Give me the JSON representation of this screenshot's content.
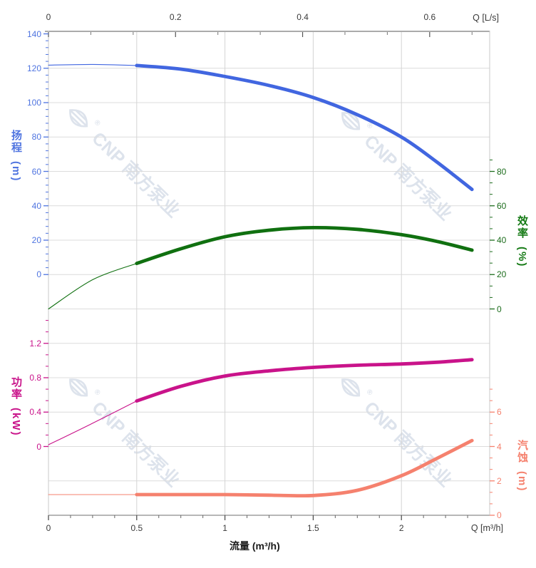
{
  "watermark": {
    "text": "CNP 南方泵业",
    "color": "#dde3ec"
  },
  "axes": {
    "top": {
      "title": "Q [L/s]",
      "ticks": [
        0,
        0.2,
        0.4,
        0.6
      ],
      "color": "#3a3a3a"
    },
    "bottom": {
      "title": "Q [m³/h]",
      "xlabel": "流量 (m³/h)",
      "ticks": [
        0,
        0.5,
        1,
        1.5,
        2
      ],
      "color": "#3a3a3a"
    },
    "head": {
      "label": "扬程",
      "unit": "(m)",
      "ticks": [
        140,
        120,
        100,
        80,
        60,
        40,
        20,
        0
      ],
      "color": "#4f74e0"
    },
    "efficiency": {
      "label": "效率",
      "unit": "(%)",
      "ticks": [
        80,
        60,
        40,
        20,
        0
      ],
      "color": "#1d6d1d"
    },
    "power": {
      "label": "功率",
      "unit": "(kW)",
      "ticks": [
        "1.2",
        "0.8",
        "0.4",
        "0"
      ],
      "color": "#c9138a"
    },
    "npsh": {
      "label": "汽蚀",
      "unit": "(m)",
      "ticks": [
        6,
        4,
        2,
        0
      ],
      "color": "#f5816e"
    }
  },
  "chart_data": {
    "type": "line",
    "title": "",
    "xlabel": "流量 (m³/h)",
    "x_axis_top": {
      "label": "Q [L/s]",
      "ticks": [
        0,
        0.2,
        0.4,
        0.6
      ],
      "conversion": "1 L/s = 3.6 m³/h"
    },
    "x_axis_bottom": {
      "label": "Q [m³/h]",
      "ticks": [
        0,
        0.5,
        1,
        1.5,
        2
      ],
      "range": [
        0,
        2.5
      ]
    },
    "grid": true,
    "legend": "none",
    "axis_ranges": {
      "head_m": [
        0,
        140
      ],
      "efficiency_pct": [
        0,
        80
      ],
      "power_kW": [
        0,
        1.2
      ],
      "npsh_m": [
        0,
        6
      ]
    },
    "thin_line_below_q": 0.5,
    "series": [
      {
        "name": "扬程",
        "unit": "m",
        "axis": "head",
        "color": "#4166e0",
        "points": [
          [
            0,
            121.8
          ],
          [
            0.25,
            122.2
          ],
          [
            0.5,
            121.6
          ],
          [
            0.75,
            119.5
          ],
          [
            1,
            115.2
          ],
          [
            1.25,
            110
          ],
          [
            1.5,
            103
          ],
          [
            1.75,
            93
          ],
          [
            2,
            80
          ],
          [
            2.2,
            65.5
          ],
          [
            2.4,
            49.5
          ]
        ]
      },
      {
        "name": "效率",
        "unit": "%",
        "axis": "efficiency",
        "color": "#107010",
        "points": [
          [
            0,
            0
          ],
          [
            0.25,
            17
          ],
          [
            0.5,
            26.5
          ],
          [
            0.75,
            35
          ],
          [
            1,
            42
          ],
          [
            1.25,
            45.8
          ],
          [
            1.5,
            47.3
          ],
          [
            1.75,
            46.3
          ],
          [
            2,
            43.2
          ],
          [
            2.2,
            39.3
          ],
          [
            2.4,
            34.2
          ]
        ]
      },
      {
        "name": "功率",
        "unit": "kW",
        "axis": "power",
        "color": "#c9138a",
        "points": [
          [
            0,
            0.02
          ],
          [
            0.25,
            0.27
          ],
          [
            0.5,
            0.53
          ],
          [
            0.75,
            0.7
          ],
          [
            1,
            0.82
          ],
          [
            1.25,
            0.88
          ],
          [
            1.5,
            0.92
          ],
          [
            1.75,
            0.945
          ],
          [
            2,
            0.96
          ],
          [
            2.2,
            0.98
          ],
          [
            2.4,
            1.01
          ]
        ]
      },
      {
        "name": "汽蚀",
        "unit": "m",
        "axis": "npsh",
        "color": "#f5816e",
        "points": [
          [
            0,
            1.2
          ],
          [
            0.25,
            1.2
          ],
          [
            0.5,
            1.2
          ],
          [
            0.75,
            1.2
          ],
          [
            1,
            1.2
          ],
          [
            1.25,
            1.17
          ],
          [
            1.5,
            1.15
          ],
          [
            1.75,
            1.45
          ],
          [
            2,
            2.3
          ],
          [
            2.2,
            3.3
          ],
          [
            2.4,
            4.35
          ]
        ]
      }
    ]
  }
}
